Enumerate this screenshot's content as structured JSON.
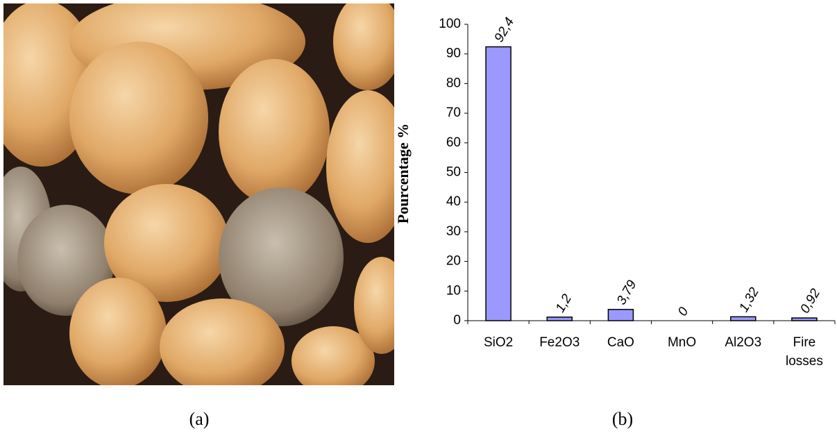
{
  "captions": [
    "(a)",
    "(b)"
  ],
  "chart_data": {
    "type": "bar",
    "y_label": "Pourcentage %",
    "categories": [
      "SiO2",
      "Fe2O3",
      "CaO",
      "MnO",
      "Al2O3",
      "Fire losses"
    ],
    "values": [
      92.4,
      1.2,
      3.79,
      0,
      1.32,
      0.92
    ],
    "value_labels": [
      "92,4",
      "1,2",
      "3,79",
      "0",
      "1,32",
      "0,92"
    ],
    "color": "#9999ff",
    "ylim": [
      0,
      100
    ],
    "yticks": [
      0,
      10,
      20,
      30,
      40,
      50,
      60,
      70,
      80,
      90,
      100
    ],
    "grid": false
  }
}
